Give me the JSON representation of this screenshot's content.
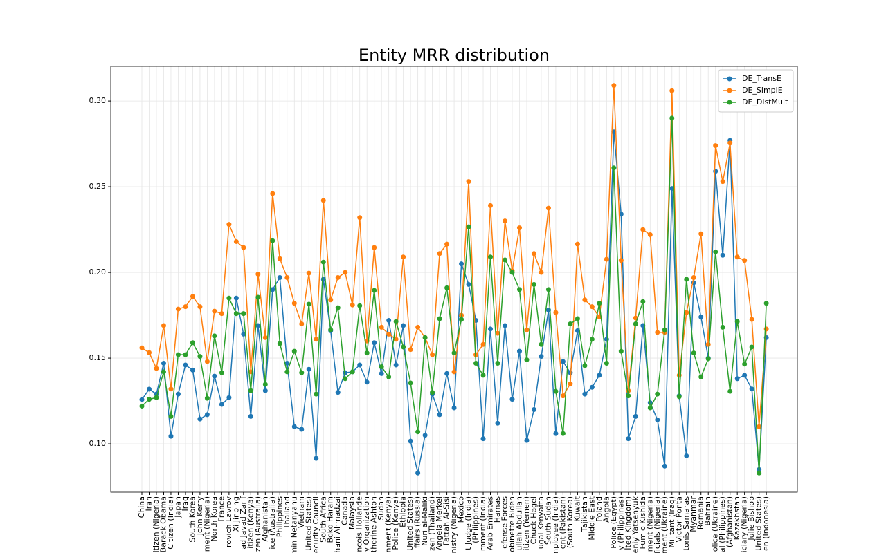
{
  "chart_data": {
    "type": "line",
    "title": "Entity MRR distribution",
    "categories": [
      "China",
      "Iran",
      "itizen (Nigeria)",
      "Barack Obama",
      "Citizen (India)",
      "Japan",
      "Iraq",
      "South Korea",
      "John Kerry",
      "ment (Nigeria)",
      "North Korea",
      "France",
      "rovich Lavrov",
      "Xi Jinping",
      "ad Javad Zarif",
      "itizen (Kenya)",
      "zen (Australia)",
      "Afghanistan",
      "ice (Australia)",
      "Philippines",
      "Thailand",
      "min Netanyahu",
      "Vietnam",
      "United States)",
      "ecurity Council",
      "South Africa",
      "Boko Haram",
      "hani Ahmadzai",
      "Canada",
      "Malaysia",
      "ncois Hollande",
      "y Organization",
      "therine Ashton",
      "Sudan",
      "nment (Kenya)",
      "Police (Kenya)",
      "Ethiopia",
      "United States)",
      "ffairs (Russia)",
      "Nuri al-Maliki",
      "zen (Thailand)",
      "Angela Merkel",
      "Fattah Al-Sisi",
      "inistry (Nigeria)",
      "Mexico",
      "t Judge (India)",
      "(Philippines)",
      "rnment (India)",
      "Arab Emirates",
      "Hamas",
      "efense Forces",
      "obinette Biden",
      "ullah Abdullah",
      "itizen (Yemen)",
      "Chuck Hagel",
      "ugai Kenyatta",
      "South Sudan",
      "mployee (India)",
      "ent (Pakistan)",
      "(South Korea)",
      "Kuwait",
      "Tajikistan",
      "Middle East",
      "Poland",
      "Angola",
      "Police (Egypt)",
      "y (Philippines)",
      "ited Kingdom)",
      "eniy Yatsenyuk",
      "Fumio Kishida",
      "ment (Nigeria)",
      "ficials (Nigeria)",
      "nment (Ukraine)",
      "Militant (Iraq)",
      "Victor Ponta",
      "tonis Samaras",
      "Myanmar",
      "Romania",
      "Bahrain",
      "olice (Ukraine)",
      "al (Philippines)",
      "(Afghanistan)",
      "Kazakhstan",
      "iciary (Nigeria)",
      "Julie Bishop",
      "United States)",
      "en (Indonesia)"
    ],
    "series": [
      {
        "name": "DE_TransE",
        "color": "#1f77b4",
        "values": [
          0.1258,
          0.1319,
          0.129,
          0.147,
          0.1044,
          0.129,
          0.146,
          0.143,
          0.1145,
          0.117,
          0.1395,
          0.123,
          0.127,
          0.185,
          0.164,
          0.116,
          0.169,
          0.131,
          0.19,
          0.197,
          0.147,
          0.11,
          0.1085,
          0.1435,
          0.0915,
          0.196,
          0.166,
          0.13,
          0.1415,
          0.142,
          0.146,
          0.136,
          0.159,
          0.141,
          0.172,
          0.146,
          0.169,
          0.1016,
          0.083,
          0.105,
          0.129,
          0.117,
          0.141,
          0.121,
          0.205,
          0.193,
          0.172,
          0.103,
          0.167,
          0.112,
          0.169,
          0.126,
          0.154,
          0.102,
          0.12,
          0.151,
          0.178,
          0.106,
          0.148,
          0.1415,
          0.166,
          0.129,
          0.133,
          0.14,
          0.161,
          0.282,
          0.234,
          0.103,
          0.116,
          0.169,
          0.124,
          0.114,
          0.087,
          0.249,
          0.128,
          0.093,
          0.194,
          0.174,
          0.15,
          0.259,
          0.21,
          0.277,
          0.138,
          0.14,
          0.132,
          0.085,
          0.162
        ]
      },
      {
        "name": "DE_SimplE",
        "color": "#ff7f0e",
        "values": [
          0.156,
          0.1532,
          0.144,
          0.169,
          0.132,
          0.1786,
          0.18,
          0.186,
          0.18,
          0.148,
          0.1774,
          0.176,
          0.228,
          0.218,
          0.2145,
          0.142,
          0.199,
          0.162,
          0.246,
          0.208,
          0.197,
          0.182,
          0.17,
          0.1996,
          0.161,
          0.242,
          0.184,
          0.197,
          0.2,
          0.181,
          0.232,
          0.16,
          0.2145,
          0.168,
          0.164,
          0.161,
          0.209,
          0.155,
          0.168,
          0.162,
          0.152,
          0.211,
          0.2165,
          0.142,
          0.175,
          0.253,
          0.152,
          0.158,
          0.239,
          0.1645,
          0.23,
          0.201,
          0.226,
          0.1665,
          0.211,
          0.2,
          0.2375,
          0.1766,
          0.128,
          0.135,
          0.2165,
          0.184,
          0.18,
          0.174,
          0.2077,
          0.309,
          0.207,
          0.131,
          0.1734,
          0.225,
          0.222,
          0.165,
          0.165,
          0.306,
          0.14,
          0.1766,
          0.197,
          0.2225,
          0.158,
          0.274,
          0.253,
          0.2755,
          0.209,
          0.207,
          0.1726,
          0.11,
          0.167
        ]
      },
      {
        "name": "DE_DistMult",
        "color": "#2ca02c",
        "values": [
          0.122,
          0.126,
          0.127,
          0.142,
          0.116,
          0.152,
          0.152,
          0.159,
          0.151,
          0.1266,
          0.163,
          0.1415,
          0.185,
          0.176,
          0.176,
          0.131,
          0.1855,
          0.1347,
          0.2185,
          0.1585,
          0.142,
          0.154,
          0.1415,
          0.1815,
          0.129,
          0.206,
          0.1665,
          0.1794,
          0.138,
          0.142,
          0.1806,
          0.153,
          0.1895,
          0.145,
          0.139,
          0.1714,
          0.1565,
          0.1355,
          0.107,
          0.162,
          0.13,
          0.173,
          0.191,
          0.153,
          0.1726,
          0.2266,
          0.147,
          0.14,
          0.209,
          0.147,
          0.2073,
          0.2,
          0.19,
          0.149,
          0.193,
          0.158,
          0.19,
          0.1306,
          0.106,
          0.17,
          0.173,
          0.1456,
          0.161,
          0.182,
          0.147,
          0.261,
          0.154,
          0.128,
          0.17,
          0.183,
          0.121,
          0.129,
          0.1665,
          0.29,
          0.1275,
          0.196,
          0.153,
          0.139,
          0.1496,
          0.212,
          0.168,
          0.1306,
          0.1714,
          0.1465,
          0.1565,
          0.083,
          0.182
        ]
      }
    ],
    "ylim": [
      0.0718,
      0.3202
    ],
    "yticks": [
      {
        "value": 0.1,
        "label": "0.10"
      },
      {
        "value": 0.15,
        "label": "0.15"
      },
      {
        "value": 0.2,
        "label": "0.20"
      },
      {
        "value": 0.25,
        "label": "0.25"
      },
      {
        "value": 0.3,
        "label": "0.30"
      }
    ],
    "grid": true,
    "legend": "upper right"
  }
}
